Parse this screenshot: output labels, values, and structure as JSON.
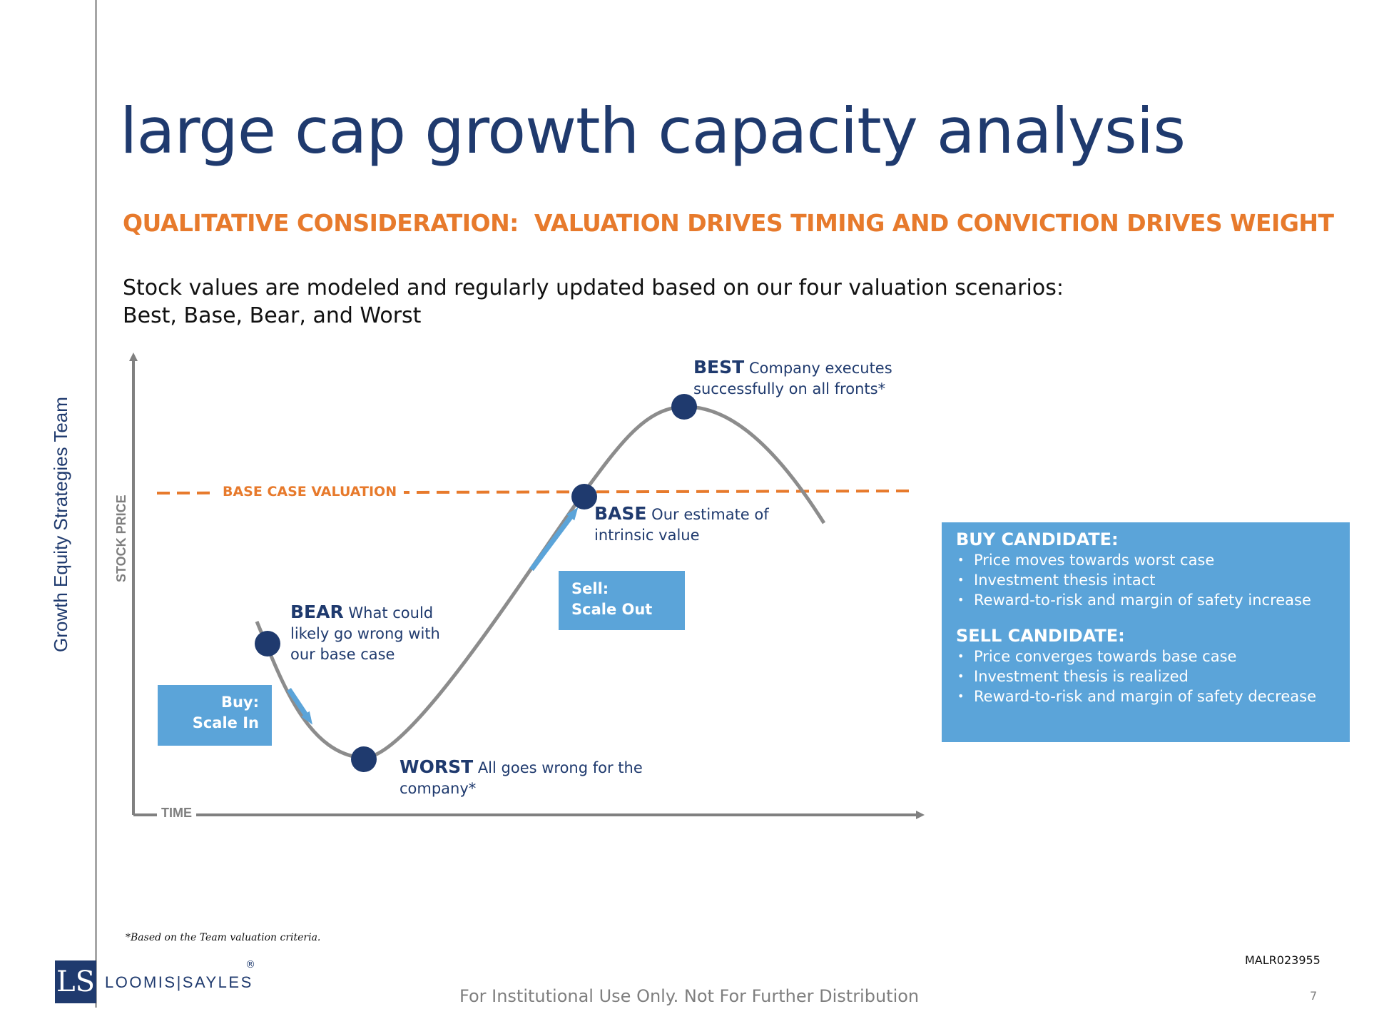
{
  "sidebar": {
    "team_label": "Growth Equity Strategies Team"
  },
  "header": {
    "title": "large cap growth capacity analysis",
    "subtitle": "QUALITATIVE CONSIDERATION:  VALUATION DRIVES TIMING AND CONVICTION DRIVES WEIGHT"
  },
  "intro": {
    "line1": "Stock values are modeled and regularly updated based on our four valuation scenarios:",
    "line2": "Best, Base, Bear, and Worst"
  },
  "diagram": {
    "y_axis_label": "STOCK PRICE",
    "x_axis_label": "TIME",
    "reference_line_label": "BASE CASE VALUATION",
    "points": {
      "best": {
        "heading": "BEST",
        "text": " Company executes successfully on all fronts*"
      },
      "base": {
        "heading": "BASE",
        "text": " Our estimate of intrinsic value"
      },
      "bear": {
        "heading": "BEAR",
        "text": " What could likely go wrong with our base case"
      },
      "worst": {
        "heading": "WORST",
        "text": " All goes wrong for the company*"
      }
    },
    "buy_box": {
      "line1": "Buy:",
      "line2": "Scale In"
    },
    "sell_box": {
      "line1": "Sell:",
      "line2": "Scale Out"
    },
    "colors": {
      "curve": "#8c8c8c",
      "marker": "#1f3a6e",
      "reference_line": "#e77a2c",
      "arrow": "#5ba4d9",
      "axis": "#808080"
    }
  },
  "info_box": {
    "buy": {
      "heading": "BUY CANDIDATE:",
      "items": [
        "Price moves towards worst case",
        "Investment thesis intact",
        "Reward-to-risk and margin of safety increase"
      ]
    },
    "sell": {
      "heading": "SELL CANDIDATE:",
      "items": [
        "Price converges towards base case",
        "Investment thesis is realized",
        "Reward-to-risk and margin of safety decrease"
      ]
    }
  },
  "footnote": "*Based on the Team valuation criteria.",
  "document_id": "MALR023955",
  "footer": {
    "disclaimer": "For Institutional Use Only. Not For Further Distribution",
    "page_number": "7"
  },
  "logo": {
    "mark": "LS",
    "wordmark": "LOOMIS|SAYLES",
    "registered": "®"
  }
}
